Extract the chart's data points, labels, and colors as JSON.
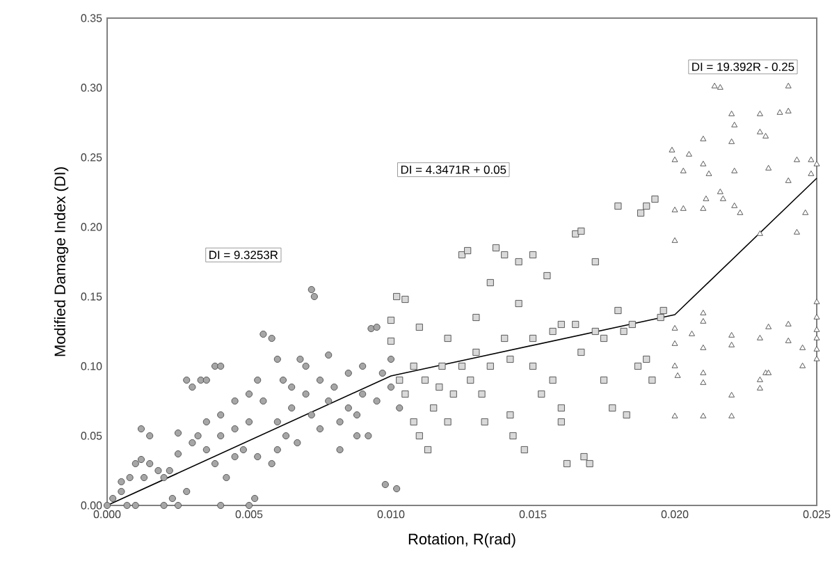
{
  "chart_data": {
    "type": "scatter",
    "xlabel": "Rotation, R(rad)",
    "ylabel": "Modified Damage Index (DI)",
    "xlim": [
      0,
      0.025
    ],
    "ylim": [
      0,
      0.35
    ],
    "xticks": [
      {
        "value": 0,
        "label": "0.000"
      },
      {
        "value": 0.005,
        "label": "0.005"
      },
      {
        "value": 0.01,
        "label": "0.010"
      },
      {
        "value": 0.015,
        "label": "0.015"
      },
      {
        "value": 0.02,
        "label": "0.020"
      },
      {
        "value": 0.025,
        "label": "0.025"
      }
    ],
    "yticks": [
      {
        "value": 0,
        "label": "0.00"
      },
      {
        "value": 0.05,
        "label": "0.05"
      },
      {
        "value": 0.1,
        "label": "0.10"
      },
      {
        "value": 0.15,
        "label": "0.15"
      },
      {
        "value": 0.2,
        "label": "0.20"
      },
      {
        "value": 0.25,
        "label": "0.25"
      },
      {
        "value": 0.3,
        "label": "0.30"
      },
      {
        "value": 0.35,
        "label": "0.35"
      }
    ],
    "grid": false,
    "series": [
      {
        "marker": "circle",
        "color": "#a6a6a6",
        "x": [
          0,
          0.0002,
          0.0005,
          0.0007,
          0.001,
          0.0008,
          0.0005,
          0.001,
          0.0012,
          0.0015,
          0.0012,
          0.0015,
          0.0013,
          0.002,
          0.0025,
          0.0023,
          0.0018,
          0.002,
          0.0025,
          0.0025,
          0.003,
          0.0028,
          0.003,
          0.0033,
          0.0035,
          0.0038,
          0.004,
          0.004,
          0.0032,
          0.0035,
          0.0038,
          0.0035,
          0.004,
          0.004,
          0.0045,
          0.0045,
          0.0042,
          0.0048,
          0.005,
          0.005,
          0.0053,
          0.0055,
          0.0053,
          0.005,
          0.0052,
          0.0055,
          0.0058,
          0.006,
          0.0062,
          0.006,
          0.0063,
          0.0065,
          0.0068,
          0.007,
          0.0072,
          0.0073,
          0.007,
          0.0072,
          0.0075,
          0.0075,
          0.0078,
          0.008,
          0.0082,
          0.0082,
          0.0085,
          0.0085,
          0.0088,
          0.009,
          0.009,
          0.0092,
          0.0093,
          0.0095,
          0.0095,
          0.0097,
          0.0098,
          0.01,
          0.01,
          0.0102,
          0.0103,
          0.006,
          0.0067,
          0.0058,
          0.0045,
          0.0028,
          0.0022,
          0.0065,
          0.0078,
          0.0088
        ],
        "values": [
          0,
          0.005,
          0.01,
          0,
          0,
          0.02,
          0.017,
          0.03,
          0.033,
          0.03,
          0.055,
          0.05,
          0.02,
          0,
          0,
          0.005,
          0.025,
          0.02,
          0.052,
          0.037,
          0.045,
          0.09,
          0.085,
          0.09,
          0.09,
          0.1,
          0.1,
          0,
          0.05,
          0.04,
          0.03,
          0.06,
          0.05,
          0.065,
          0.055,
          0.035,
          0.02,
          0.04,
          0.06,
          0.08,
          0.09,
          0.075,
          0.035,
          0,
          0.005,
          0.123,
          0.12,
          0.105,
          0.09,
          0.06,
          0.05,
          0.07,
          0.105,
          0.1,
          0.155,
          0.15,
          0.08,
          0.065,
          0.055,
          0.09,
          0.108,
          0.085,
          0.06,
          0.04,
          0.095,
          0.07,
          0.065,
          0.1,
          0.08,
          0.05,
          0.127,
          0.128,
          0.075,
          0.095,
          0.015,
          0.105,
          0.085,
          0.012,
          0.07,
          0.04,
          0.045,
          0.03,
          0.075,
          0.01,
          0.025,
          0.085,
          0.075,
          0.05
        ]
      },
      {
        "marker": "square",
        "color": "#d9d9d9",
        "x": [
          0.0105,
          0.0102,
          0.01,
          0.01,
          0.0103,
          0.0105,
          0.0108,
          0.0108,
          0.011,
          0.011,
          0.0112,
          0.0113,
          0.0115,
          0.0117,
          0.0118,
          0.012,
          0.012,
          0.0122,
          0.0125,
          0.0127,
          0.0125,
          0.0128,
          0.013,
          0.013,
          0.0132,
          0.0133,
          0.0135,
          0.0135,
          0.0137,
          0.014,
          0.014,
          0.0142,
          0.0142,
          0.0143,
          0.0145,
          0.0145,
          0.0147,
          0.015,
          0.015,
          0.015,
          0.0153,
          0.0155,
          0.0157,
          0.0157,
          0.016,
          0.016,
          0.016,
          0.0162,
          0.0165,
          0.0167,
          0.0165,
          0.0167,
          0.0168,
          0.017,
          0.0172,
          0.0172,
          0.0175,
          0.0175,
          0.0178,
          0.018,
          0.018,
          0.0182,
          0.0183,
          0.0185,
          0.0187,
          0.0188,
          0.019,
          0.019,
          0.0192,
          0.0193,
          0.0195,
          0.0196
        ],
        "values": [
          0.148,
          0.15,
          0.133,
          0.118,
          0.09,
          0.08,
          0.06,
          0.1,
          0.128,
          0.05,
          0.09,
          0.04,
          0.07,
          0.085,
          0.1,
          0.12,
          0.06,
          0.08,
          0.18,
          0.183,
          0.1,
          0.09,
          0.135,
          0.11,
          0.08,
          0.06,
          0.16,
          0.1,
          0.185,
          0.18,
          0.12,
          0.105,
          0.065,
          0.05,
          0.175,
          0.145,
          0.04,
          0.18,
          0.12,
          0.1,
          0.08,
          0.165,
          0.125,
          0.09,
          0.13,
          0.07,
          0.06,
          0.03,
          0.195,
          0.197,
          0.13,
          0.11,
          0.035,
          0.03,
          0.175,
          0.125,
          0.12,
          0.09,
          0.07,
          0.14,
          0.215,
          0.125,
          0.065,
          0.13,
          0.1,
          0.21,
          0.215,
          0.105,
          0.09,
          0.22,
          0.135,
          0.14
        ]
      },
      {
        "marker": "triangle",
        "color": "#ffffff",
        "x": [
          0.0214,
          0.0216,
          0.024,
          0.022,
          0.0221,
          0.023,
          0.0237,
          0.024,
          0.023,
          0.0232,
          0.021,
          0.022,
          0.0199,
          0.0205,
          0.02,
          0.021,
          0.0203,
          0.0212,
          0.0221,
          0.0233,
          0.0243,
          0.0248,
          0.024,
          0.0248,
          0.025,
          0.0211,
          0.0216,
          0.0217,
          0.0221,
          0.0223,
          0.02,
          0.0203,
          0.021,
          0.0246,
          0.023,
          0.0243,
          0.02,
          0.021,
          0.021,
          0.02,
          0.0206,
          0.02,
          0.021,
          0.022,
          0.022,
          0.023,
          0.0233,
          0.024,
          0.024,
          0.0245,
          0.025,
          0.025,
          0.025,
          0.025,
          0.025,
          0.025,
          0.0245,
          0.02,
          0.0201,
          0.021,
          0.021,
          0.022,
          0.023,
          0.0232,
          0.0233,
          0.023,
          0.02,
          0.021,
          0.022
        ],
        "values": [
          0.301,
          0.3,
          0.301,
          0.281,
          0.273,
          0.281,
          0.282,
          0.283,
          0.268,
          0.265,
          0.263,
          0.261,
          0.255,
          0.252,
          0.248,
          0.245,
          0.24,
          0.238,
          0.24,
          0.242,
          0.248,
          0.248,
          0.233,
          0.238,
          0.245,
          0.22,
          0.225,
          0.22,
          0.215,
          0.21,
          0.212,
          0.213,
          0.213,
          0.21,
          0.195,
          0.196,
          0.19,
          0.138,
          0.132,
          0.127,
          0.123,
          0.116,
          0.113,
          0.122,
          0.115,
          0.12,
          0.128,
          0.13,
          0.118,
          0.113,
          0.146,
          0.135,
          0.126,
          0.12,
          0.112,
          0.105,
          0.1,
          0.1,
          0.093,
          0.095,
          0.088,
          0.079,
          0.09,
          0.095,
          0.095,
          0.084,
          0.064,
          0.064,
          0.064
        ]
      },
      {
        "type": "line",
        "marker": "none",
        "line_style": "solid",
        "color": "#000000",
        "x": [
          0,
          0.01,
          0.02,
          0.025
        ],
        "values": [
          0,
          0.093,
          0.137,
          0.235
        ]
      }
    ],
    "annotations": [
      "DI = 9.3253R",
      "DI = 4.3471R + 0.05",
      "DI = 19.392R - 0.25"
    ]
  }
}
